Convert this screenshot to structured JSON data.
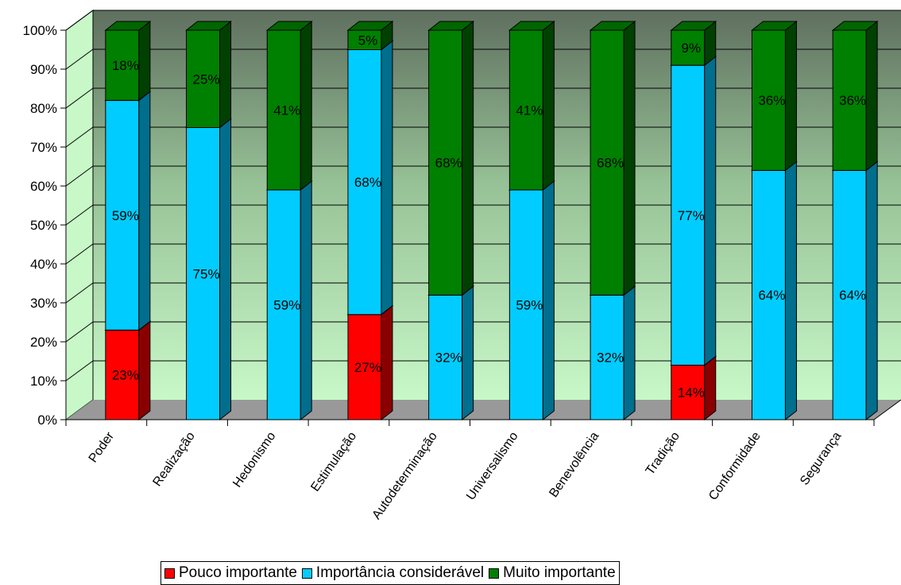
{
  "chart_data": {
    "type": "bar",
    "stacked": true,
    "percent_stacked": true,
    "three_d": true,
    "title": "",
    "xlabel": "",
    "ylabel": "",
    "ylim": [
      0,
      100
    ],
    "y_ticks": [
      "0%",
      "10%",
      "20%",
      "30%",
      "40%",
      "50%",
      "60%",
      "70%",
      "80%",
      "90%",
      "100%"
    ],
    "grid": true,
    "legend_position": "bottom",
    "categories": [
      "Poder",
      "Realização",
      "Hedonismo",
      "Estimulação",
      "Autodeterminação",
      "Universalismo",
      "Benevolência",
      "Tradição",
      "Conformidade",
      "Segurança"
    ],
    "series": [
      {
        "name": "Pouco importante",
        "color": "#ff0000",
        "side_color": "#8a0000",
        "values": [
          23,
          0,
          0,
          27,
          0,
          0,
          0,
          14,
          0,
          0
        ],
        "labels": [
          "23%",
          "",
          "",
          "27%",
          "",
          "",
          "",
          "14%",
          "",
          ""
        ]
      },
      {
        "name": "Importância considerável",
        "color": "#00ccff",
        "side_color": "#006e8c",
        "values": [
          59,
          75,
          59,
          68,
          32,
          59,
          32,
          77,
          64,
          64
        ],
        "labels": [
          "59%",
          "75%",
          "59%",
          "68%",
          "32%",
          "59%",
          "32%",
          "77%",
          "64%",
          "64%"
        ]
      },
      {
        "name": "Muito importante",
        "color": "#008000",
        "side_color": "#004000",
        "values": [
          18,
          25,
          41,
          5,
          68,
          41,
          68,
          9,
          36,
          36
        ],
        "labels": [
          "18%",
          "25%",
          "41%",
          "5%",
          "68%",
          "41%",
          "68%",
          "9%",
          "36%",
          "36%"
        ]
      }
    ]
  }
}
